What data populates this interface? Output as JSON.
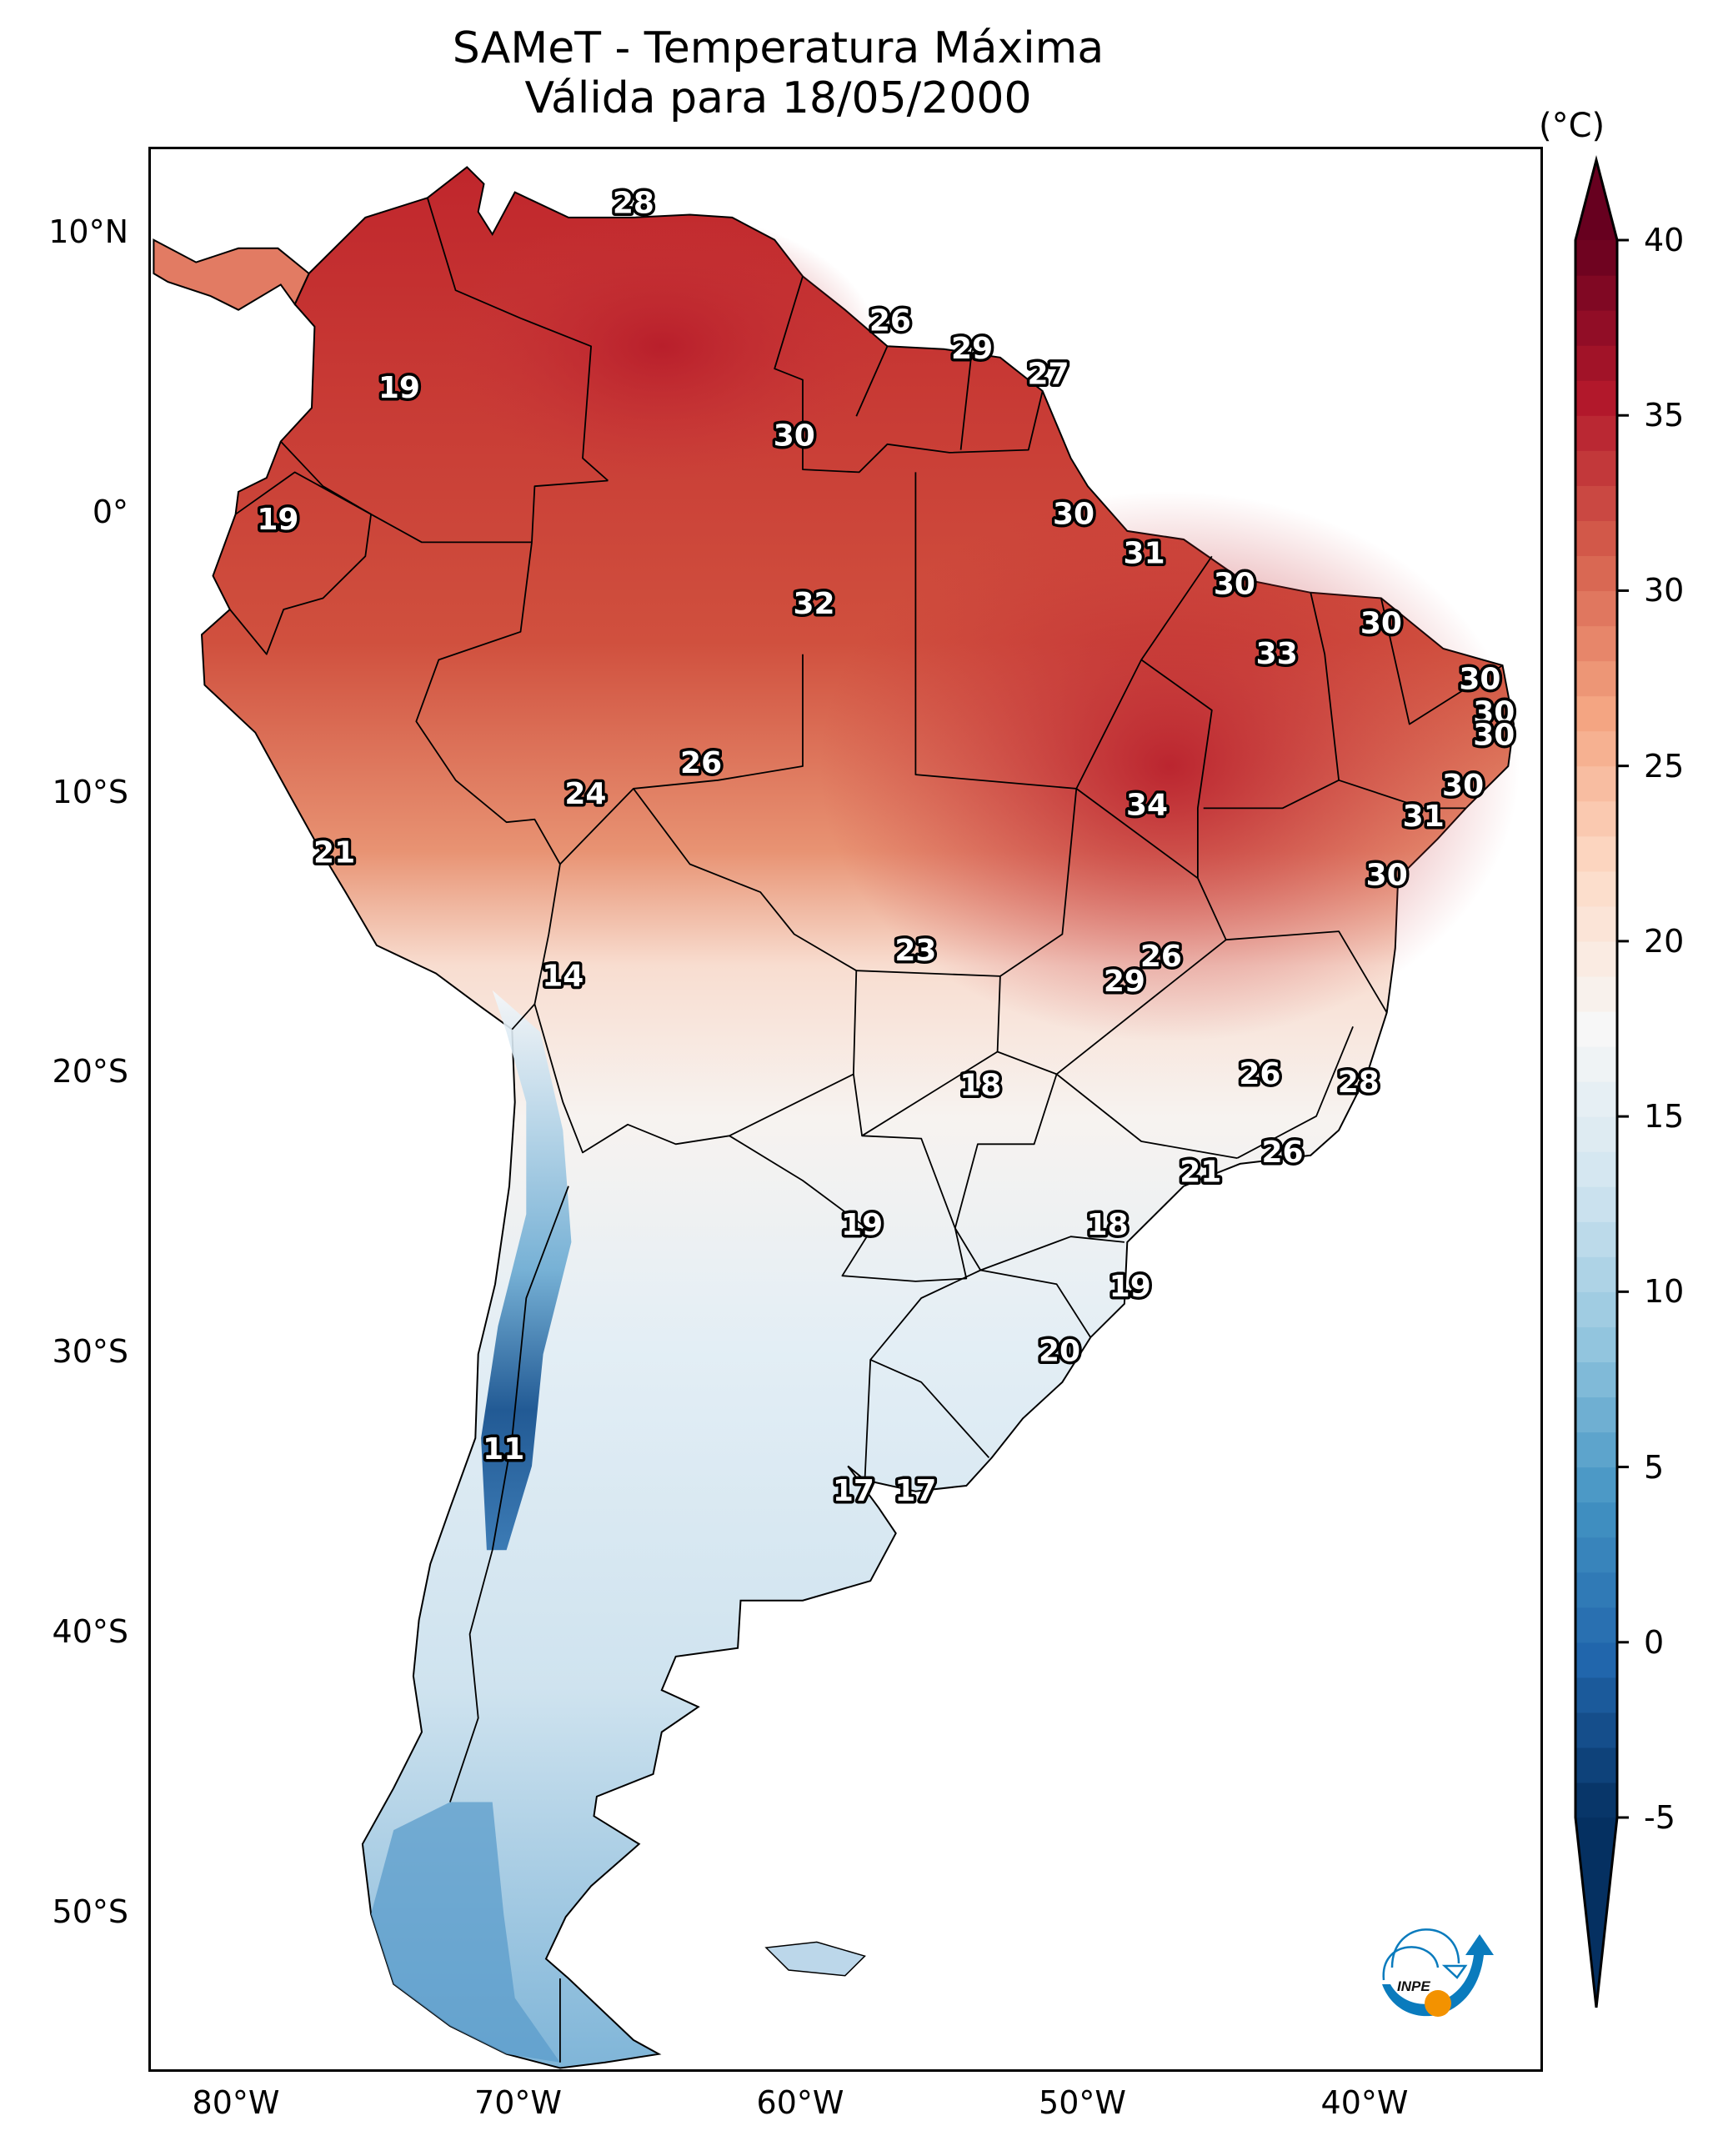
{
  "title": {
    "line1": "SAMeT - Temperatura Máxima",
    "line2": "Válida para 18/05/2000"
  },
  "chart_data": {
    "type": "heatmap",
    "title": "SAMeT - Temperatura Máxima Válida para 18/05/2000",
    "variable": "Maximum temperature",
    "region": "South America",
    "xlabel": "",
    "ylabel": "",
    "x_range_lon": [
      -83,
      -33.7
    ],
    "y_range_lat": [
      13,
      -55.7
    ],
    "x_ticks": [
      {
        "lon": -80,
        "label": "80°W"
      },
      {
        "lon": -70,
        "label": "70°W"
      },
      {
        "lon": -60,
        "label": "60°W"
      },
      {
        "lon": -50,
        "label": "50°W"
      },
      {
        "lon": -40,
        "label": "40°W"
      }
    ],
    "y_ticks": [
      {
        "lat": 10,
        "label": "10°N"
      },
      {
        "lat": 0,
        "label": "0°"
      },
      {
        "lat": -10,
        "label": "10°S"
      },
      {
        "lat": -20,
        "label": "20°S"
      },
      {
        "lat": -30,
        "label": "30°S"
      },
      {
        "lat": -40,
        "label": "40°S"
      },
      {
        "lat": -50,
        "label": "50°S"
      }
    ],
    "grid": false,
    "colorbar": {
      "unit": "(°C)",
      "colormap": "RdBu_r",
      "min": -5,
      "max": 40,
      "extend": "both",
      "ticks": [
        40,
        35,
        30,
        25,
        20,
        15,
        10,
        5,
        0,
        -5
      ],
      "tick_labels": [
        "40",
        "35",
        "30",
        "25",
        "20",
        "15",
        "10",
        "5",
        "0",
        "-5"
      ],
      "position": "right"
    },
    "point_labels": [
      {
        "lon": -66.0,
        "lat": 11.1,
        "value": 28
      },
      {
        "lon": -74.3,
        "lat": 4.5,
        "value": 19
      },
      {
        "lon": -56.9,
        "lat": 6.9,
        "value": 26
      },
      {
        "lon": -54.0,
        "lat": 5.9,
        "value": 29
      },
      {
        "lon": -51.3,
        "lat": 5.0,
        "value": 27
      },
      {
        "lon": -60.3,
        "lat": 2.8,
        "value": 30
      },
      {
        "lon": -78.6,
        "lat": -0.2,
        "value": 19
      },
      {
        "lon": -50.4,
        "lat": 0.0,
        "value": 30
      },
      {
        "lon": -47.9,
        "lat": -1.4,
        "value": 31
      },
      {
        "lon": -44.7,
        "lat": -2.5,
        "value": 30
      },
      {
        "lon": -59.6,
        "lat": -3.2,
        "value": 32
      },
      {
        "lon": -39.5,
        "lat": -3.9,
        "value": 30
      },
      {
        "lon": -43.2,
        "lat": -5.0,
        "value": 33
      },
      {
        "lon": -36.0,
        "lat": -5.9,
        "value": 30
      },
      {
        "lon": -35.5,
        "lat": -7.1,
        "value": 30
      },
      {
        "lon": -35.5,
        "lat": -7.9,
        "value": 30
      },
      {
        "lon": -63.6,
        "lat": -8.9,
        "value": 26
      },
      {
        "lon": -67.7,
        "lat": -10.0,
        "value": 24
      },
      {
        "lon": -36.6,
        "lat": -9.7,
        "value": 30
      },
      {
        "lon": -47.8,
        "lat": -10.4,
        "value": 34
      },
      {
        "lon": -38.0,
        "lat": -10.8,
        "value": 31
      },
      {
        "lon": -76.6,
        "lat": -12.1,
        "value": 21
      },
      {
        "lon": -39.3,
        "lat": -12.9,
        "value": 30
      },
      {
        "lon": -68.5,
        "lat": -16.5,
        "value": 14
      },
      {
        "lon": -56.0,
        "lat": -15.6,
        "value": 23
      },
      {
        "lon": -47.3,
        "lat": -15.8,
        "value": 26
      },
      {
        "lon": -48.6,
        "lat": -16.7,
        "value": 29
      },
      {
        "lon": -53.7,
        "lat": -20.4,
        "value": 18
      },
      {
        "lon": -43.8,
        "lat": -20.0,
        "value": 26
      },
      {
        "lon": -40.3,
        "lat": -20.3,
        "value": 28
      },
      {
        "lon": -43.0,
        "lat": -22.8,
        "value": 26
      },
      {
        "lon": -45.9,
        "lat": -23.5,
        "value": 21
      },
      {
        "lon": -57.9,
        "lat": -25.4,
        "value": 19
      },
      {
        "lon": -49.2,
        "lat": -25.4,
        "value": 18
      },
      {
        "lon": -48.4,
        "lat": -27.6,
        "value": 19
      },
      {
        "lon": -50.9,
        "lat": -29.9,
        "value": 20
      },
      {
        "lon": -70.6,
        "lat": -33.4,
        "value": 11
      },
      {
        "lon": -58.2,
        "lat": -34.9,
        "value": 17
      },
      {
        "lon": -56.0,
        "lat": -34.9,
        "value": 17
      }
    ]
  },
  "logo": {
    "text": "INPE",
    "colors": {
      "blue": "#0a7bbd",
      "orange": "#f39200"
    }
  },
  "colors": {
    "frame": "#000000",
    "ocean": "#ffffff"
  }
}
